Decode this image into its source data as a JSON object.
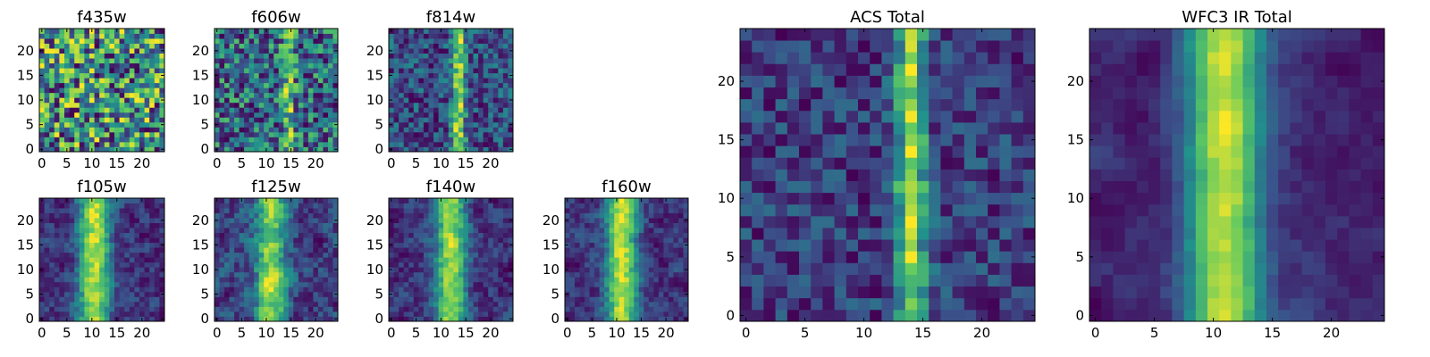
{
  "figure": {
    "colormap": "viridis",
    "colormap_stops": [
      "#440154",
      "#3b528b",
      "#21918c",
      "#5ec962",
      "#fde725"
    ],
    "background": "#ffffff"
  },
  "chart_data": [
    {
      "type": "heatmap",
      "title": "f435w",
      "grid_size": 25,
      "xlim": [
        0,
        24
      ],
      "ylim": [
        0,
        24
      ],
      "x_ticks": [
        "0",
        "5",
        "10",
        "15",
        "20"
      ],
      "y_ticks": [
        "0",
        "5",
        "10",
        "15",
        "20"
      ],
      "band_center": null,
      "band_strength": 0.0,
      "background_level": 0.72,
      "noise": 0.22,
      "smooth": 0,
      "seed": 11
    },
    {
      "type": "heatmap",
      "title": "f606w",
      "grid_size": 25,
      "xlim": [
        0,
        24
      ],
      "ylim": [
        0,
        24
      ],
      "x_ticks": [
        "0",
        "5",
        "10",
        "15",
        "20"
      ],
      "y_ticks": [
        "0",
        "5",
        "10",
        "15",
        "20"
      ],
      "band_center": 14.5,
      "band_strength": 0.25,
      "background_level": 0.62,
      "noise": 0.25,
      "smooth": 0,
      "seed": 22
    },
    {
      "type": "heatmap",
      "title": "f814w",
      "grid_size": 25,
      "xlim": [
        0,
        24
      ],
      "ylim": [
        0,
        24
      ],
      "x_ticks": [
        "0",
        "5",
        "10",
        "15",
        "20"
      ],
      "y_ticks": [
        "0",
        "5",
        "10",
        "15",
        "20"
      ],
      "band_center": 13.5,
      "band_strength": 0.55,
      "background_level": 0.38,
      "noise": 0.22,
      "smooth": 0,
      "seed": 33
    },
    {
      "type": "heatmap",
      "title": "f105w",
      "grid_size": 25,
      "xlim": [
        0,
        24
      ],
      "ylim": [
        0,
        24
      ],
      "x_ticks": [
        "0",
        "5",
        "10",
        "15",
        "20"
      ],
      "y_ticks": [
        "0",
        "5",
        "10",
        "15",
        "20"
      ],
      "band_center": 10.5,
      "band_strength": 0.45,
      "background_level": 0.5,
      "noise": 0.14,
      "smooth": 1,
      "seed": 44
    },
    {
      "type": "heatmap",
      "title": "f125w",
      "grid_size": 25,
      "xlim": [
        0,
        24
      ],
      "ylim": [
        0,
        24
      ],
      "x_ticks": [
        "0",
        "5",
        "10",
        "15",
        "20"
      ],
      "y_ticks": [
        "0",
        "5",
        "10",
        "15",
        "20"
      ],
      "band_center": 11.0,
      "band_strength": 0.3,
      "background_level": 0.62,
      "noise": 0.14,
      "smooth": 1,
      "seed": 55
    },
    {
      "type": "heatmap",
      "title": "f140w",
      "grid_size": 25,
      "xlim": [
        0,
        24
      ],
      "ylim": [
        0,
        24
      ],
      "x_ticks": [
        "0",
        "5",
        "10",
        "15",
        "20"
      ],
      "y_ticks": [
        "0",
        "5",
        "10",
        "15",
        "20"
      ],
      "band_center": 12.0,
      "band_strength": 0.45,
      "background_level": 0.45,
      "noise": 0.14,
      "smooth": 1,
      "seed": 66
    },
    {
      "type": "heatmap",
      "title": "f160w",
      "grid_size": 25,
      "xlim": [
        0,
        24
      ],
      "ylim": [
        0,
        24
      ],
      "x_ticks": [
        "0",
        "5",
        "10",
        "15",
        "20"
      ],
      "y_ticks": [
        "0",
        "5",
        "10",
        "15",
        "20"
      ],
      "band_center": 11.0,
      "band_strength": 0.5,
      "background_level": 0.35,
      "noise": 0.14,
      "smooth": 1,
      "seed": 77
    },
    {
      "type": "heatmap",
      "title": "ACS Total",
      "grid_size": 25,
      "xlim": [
        0,
        24
      ],
      "ylim": [
        0,
        24
      ],
      "x_ticks": [
        "0",
        "5",
        "10",
        "15",
        "20"
      ],
      "y_ticks": [
        "0",
        "5",
        "10",
        "15",
        "20"
      ],
      "band_center": 14.0,
      "band_strength": 0.55,
      "background_level": 0.45,
      "noise": 0.16,
      "smooth": 0,
      "seed": 88
    },
    {
      "type": "heatmap",
      "title": "WFC3 IR Total",
      "grid_size": 25,
      "xlim": [
        0,
        24
      ],
      "ylim": [
        0,
        24
      ],
      "x_ticks": [
        "0",
        "5",
        "10",
        "15",
        "20"
      ],
      "y_ticks": [
        "0",
        "5",
        "10",
        "15",
        "20"
      ],
      "band_center": 11.0,
      "band_strength": 0.5,
      "background_level": 0.4,
      "noise": 0.1,
      "smooth": 2,
      "seed": 99
    }
  ]
}
